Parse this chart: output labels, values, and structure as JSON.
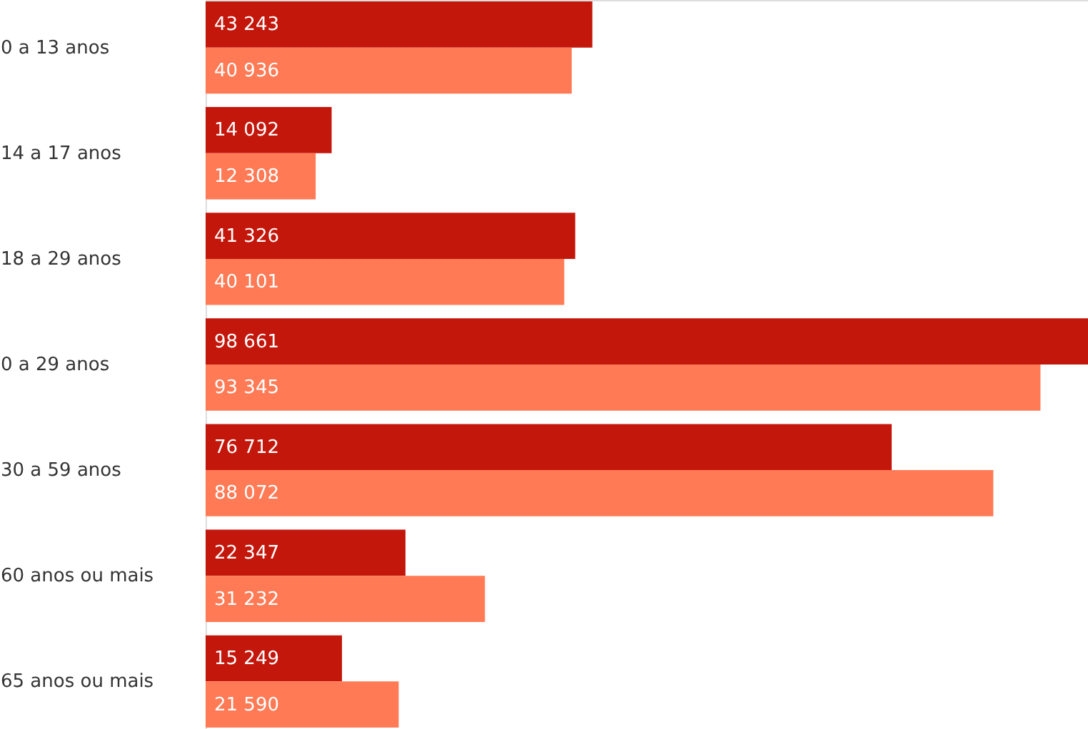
{
  "chart_data": {
    "type": "bar",
    "orientation": "horizontal",
    "categories": [
      "0 a 13 anos",
      "14 a 17 anos",
      "18 a 29 anos",
      "0 a 29 anos",
      "30 a 59 anos",
      "60 anos ou mais",
      "65 anos ou mais"
    ],
    "series": [
      {
        "color": "#c4170c",
        "values": [
          43243,
          14092,
          41326,
          98661,
          76712,
          22347,
          15249
        ],
        "value_labels": [
          "43 243",
          "14 092",
          "41 326",
          "98 661",
          "76 712",
          "22 347",
          "15 249"
        ]
      },
      {
        "color": "#ff7a55",
        "values": [
          40936,
          12308,
          40101,
          93345,
          88072,
          31232,
          21590
        ],
        "value_labels": [
          "40 936",
          "12 308",
          "40 101",
          "93 345",
          "88 072",
          "31 232",
          "21 590"
        ]
      }
    ]
  }
}
